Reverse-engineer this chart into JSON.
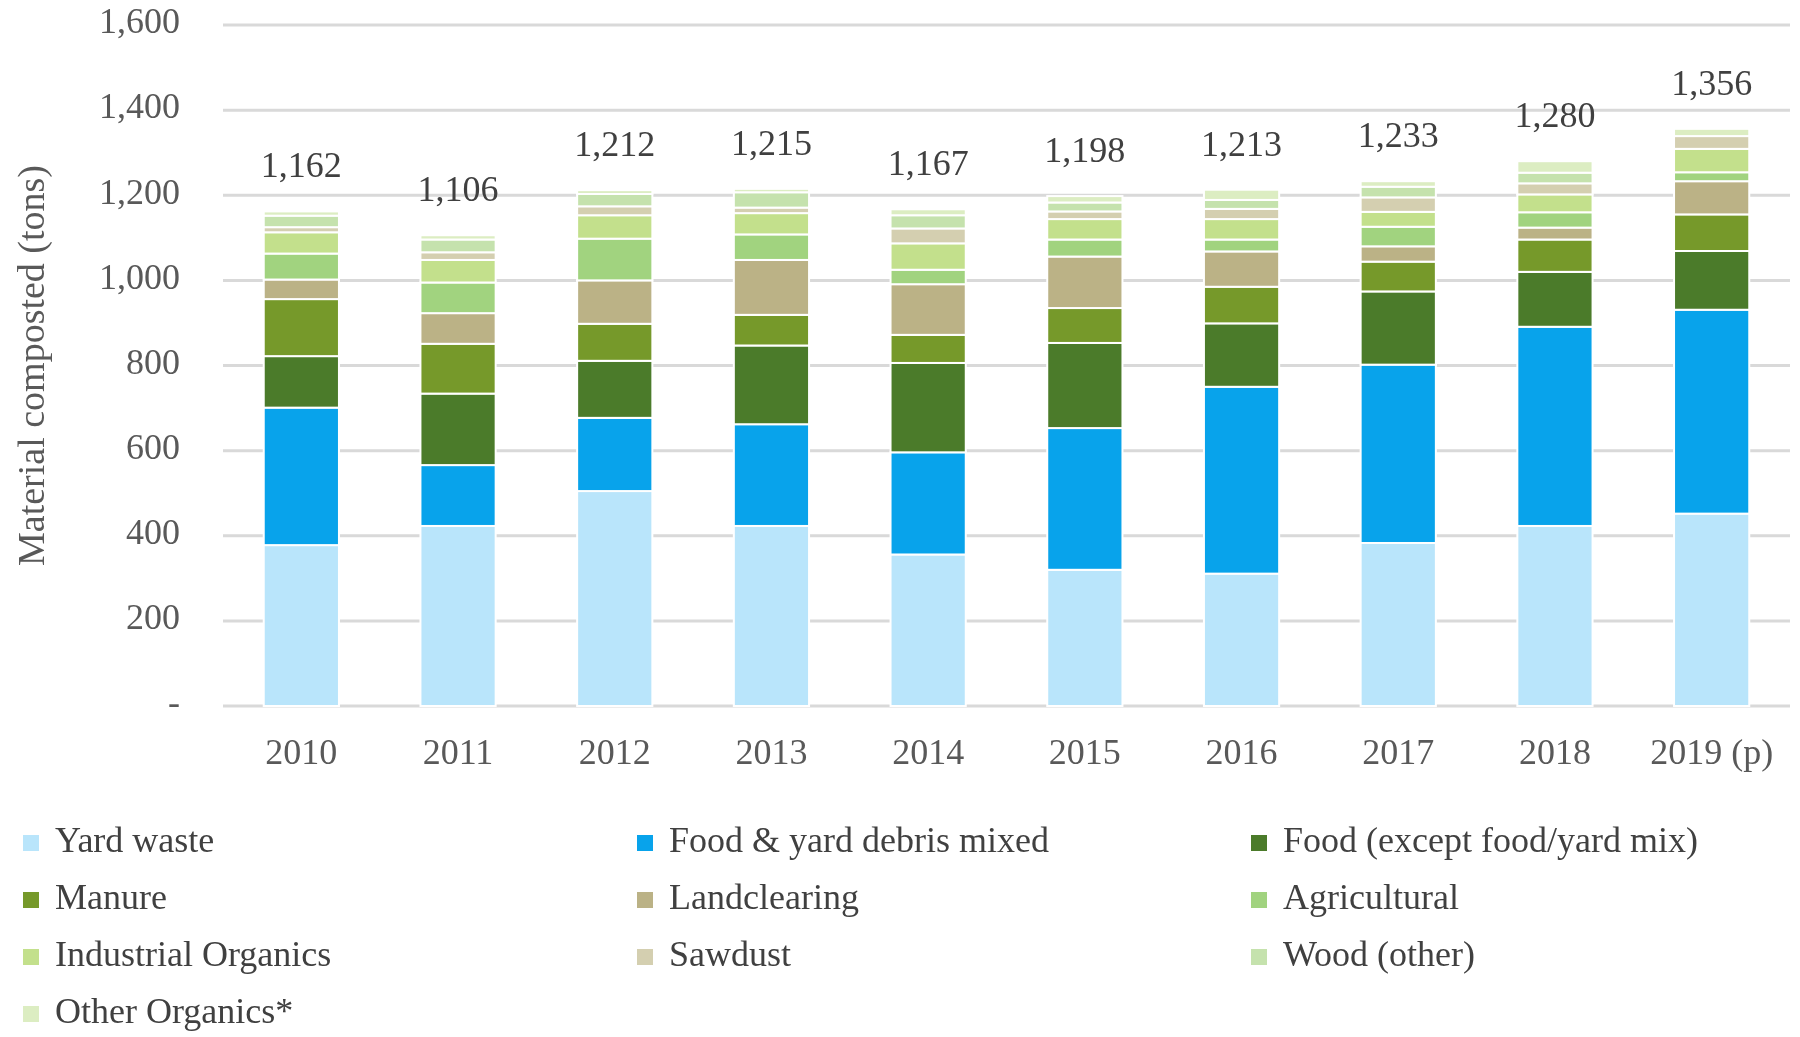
{
  "chart_data": {
    "type": "bar",
    "stacked": true,
    "ylabel": "Material composted (tons)",
    "categories": [
      "2010",
      "2011",
      "2012",
      "2013",
      "2014",
      "2015",
      "2016",
      "2017",
      "2018",
      "2019 (p)"
    ],
    "series": [
      {
        "name": "Yard waste",
        "color": "#b9e5fb",
        "values": [
          378,
          423,
          505,
          423,
          356,
          320,
          311,
          383,
          423,
          452
        ]
      },
      {
        "name": "Food & yard debris mixed",
        "color": "#08a3eb",
        "values": [
          323,
          143,
          172,
          239,
          240,
          333,
          439,
          419,
          468,
          479
        ]
      },
      {
        "name": "Food (except food/yard mix)",
        "color": "#4b7b2a",
        "values": [
          121,
          168,
          134,
          185,
          210,
          200,
          149,
          172,
          129,
          138
        ]
      },
      {
        "name": "Manure",
        "color": "#76992a",
        "values": [
          134,
          117,
          87,
          72,
          66,
          82,
          86,
          70,
          76,
          86
        ]
      },
      {
        "name": "Landclearing",
        "color": "#bbb286",
        "values": [
          46,
          72,
          102,
          129,
          119,
          121,
          83,
          36,
          28,
          78
        ]
      },
      {
        "name": "Agricultural",
        "color": "#a1d37f",
        "values": [
          61,
          72,
          98,
          60,
          34,
          40,
          28,
          46,
          36,
          21
        ]
      },
      {
        "name": "Industrial Organics",
        "color": "#c3e08c",
        "values": [
          50,
          53,
          55,
          50,
          62,
          48,
          48,
          35,
          42,
          55
        ]
      },
      {
        "name": "Sawdust",
        "color": "#d4cfb0",
        "values": [
          12,
          18,
          21,
          13,
          35,
          18,
          24,
          34,
          26,
          30
        ]
      },
      {
        "name": "Wood (other)",
        "color": "#c5e2ad",
        "values": [
          27,
          30,
          29,
          36,
          31,
          21,
          21,
          25,
          25,
          null
        ]
      },
      {
        "name": "Other Organics*",
        "color": "#dcedc2",
        "values": [
          10,
          10,
          9,
          8,
          14,
          15,
          24,
          13,
          27,
          17
        ]
      }
    ],
    "totals": [
      "1,162",
      "1,106",
      "1,212",
      "1,215",
      "1,167",
      "1,198",
      "1,213",
      "1,233",
      "1,280",
      "1,356"
    ],
    "ylim": [
      0,
      1600
    ],
    "yticks": [
      {
        "value": 0,
        "label": "-"
      },
      200,
      400,
      600,
      800,
      {
        "value": 1000,
        "label": "1,000"
      },
      {
        "value": 1200,
        "label": "1,200"
      },
      {
        "value": 1400,
        "label": "1,400"
      },
      {
        "value": 1600,
        "label": "1,600"
      }
    ],
    "grid": "y",
    "legend": "bottom"
  }
}
